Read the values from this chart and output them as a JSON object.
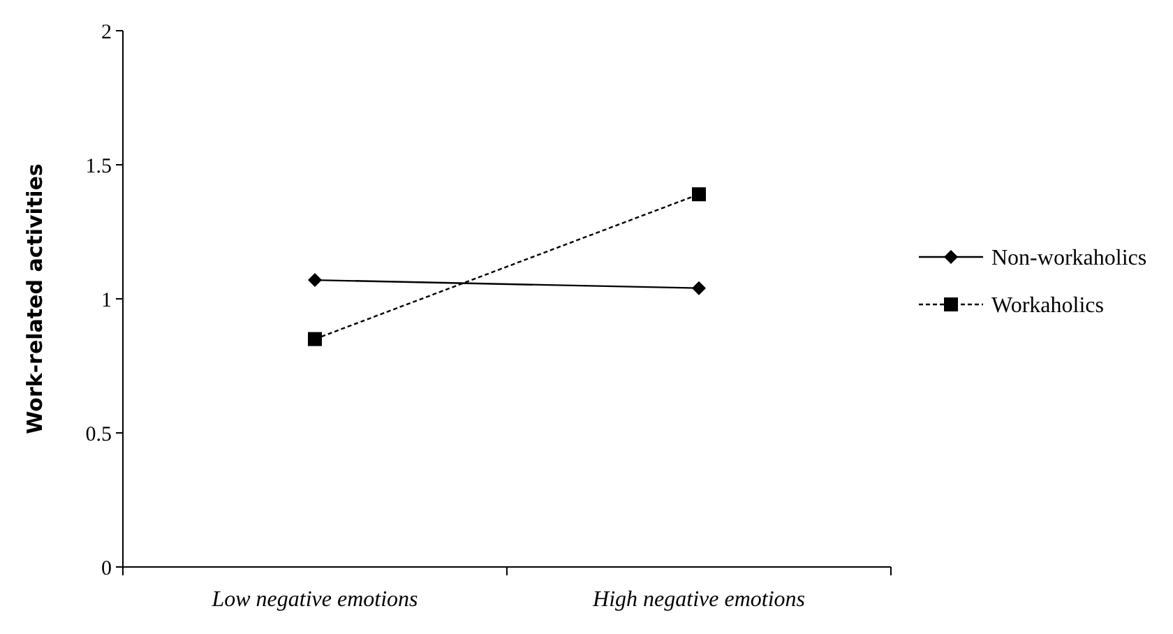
{
  "chart_data": {
    "type": "line",
    "ylabel": "Work-related activities",
    "categories": [
      "Low negative emotions",
      "High negative emotions"
    ],
    "series": [
      {
        "name": "Non-workaholics",
        "color": "#000000",
        "values": [
          1.07,
          1.04
        ],
        "marker": "diamond",
        "line_style": "solid"
      },
      {
        "name": "Workaholics",
        "color": "#000000",
        "values": [
          0.85,
          1.39
        ],
        "marker": "square",
        "line_style": "dashed"
      }
    ],
    "ylim": [
      0,
      2
    ],
    "yticks": [
      0,
      0.5,
      1,
      1.5,
      2
    ],
    "grid": false,
    "legend": "right"
  }
}
